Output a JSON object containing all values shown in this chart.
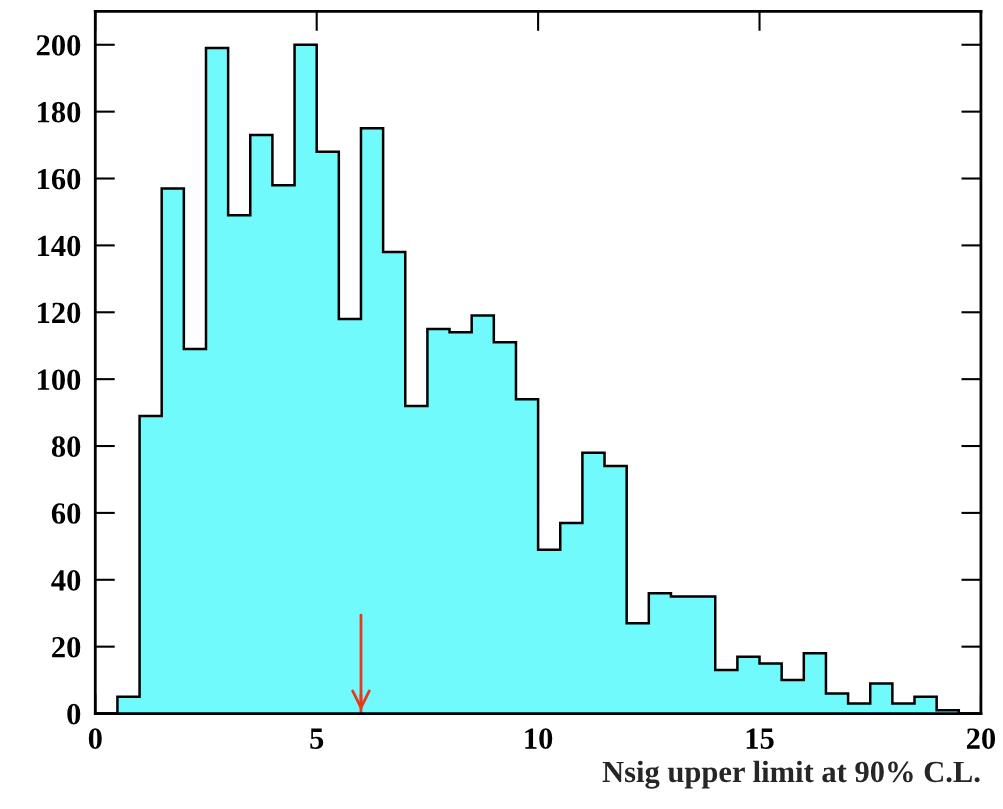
{
  "chart_data": {
    "type": "histogram",
    "xlabel": "Nsig upper limit at 90% C.L.",
    "bins": [
      0,
      0.5,
      1,
      1.5,
      2,
      2.5,
      3,
      3.5,
      4,
      4.5,
      5,
      5.5,
      6,
      6.5,
      7,
      7.5,
      8,
      8.5,
      9,
      9.5,
      10,
      10.5,
      11,
      11.5,
      12,
      12.5,
      13,
      13.5,
      14,
      14.5,
      15,
      15.5,
      16,
      16.5,
      17,
      17.5,
      18,
      18.5,
      19,
      19.5,
      20
    ],
    "values": [
      0,
      5,
      89,
      157,
      109,
      199,
      149,
      173,
      158,
      200,
      168,
      118,
      175,
      138,
      92,
      115,
      114,
      119,
      111,
      94,
      49,
      57,
      78,
      74,
      27,
      36,
      35,
      35,
      13,
      17,
      15,
      10,
      18,
      6,
      3,
      9,
      3,
      5,
      1,
      0
    ],
    "color": "#70fafc",
    "xlim": [
      0,
      20
    ],
    "ylim": [
      0,
      210
    ],
    "xticks": [
      0,
      5,
      10,
      15,
      20
    ],
    "yticks": [
      0,
      20,
      40,
      60,
      80,
      100,
      120,
      140,
      160,
      180,
      200
    ],
    "grid": false,
    "ref_lines": [
      {
        "axis": "x",
        "value": 6,
        "color": "#e8391c"
      }
    ]
  }
}
